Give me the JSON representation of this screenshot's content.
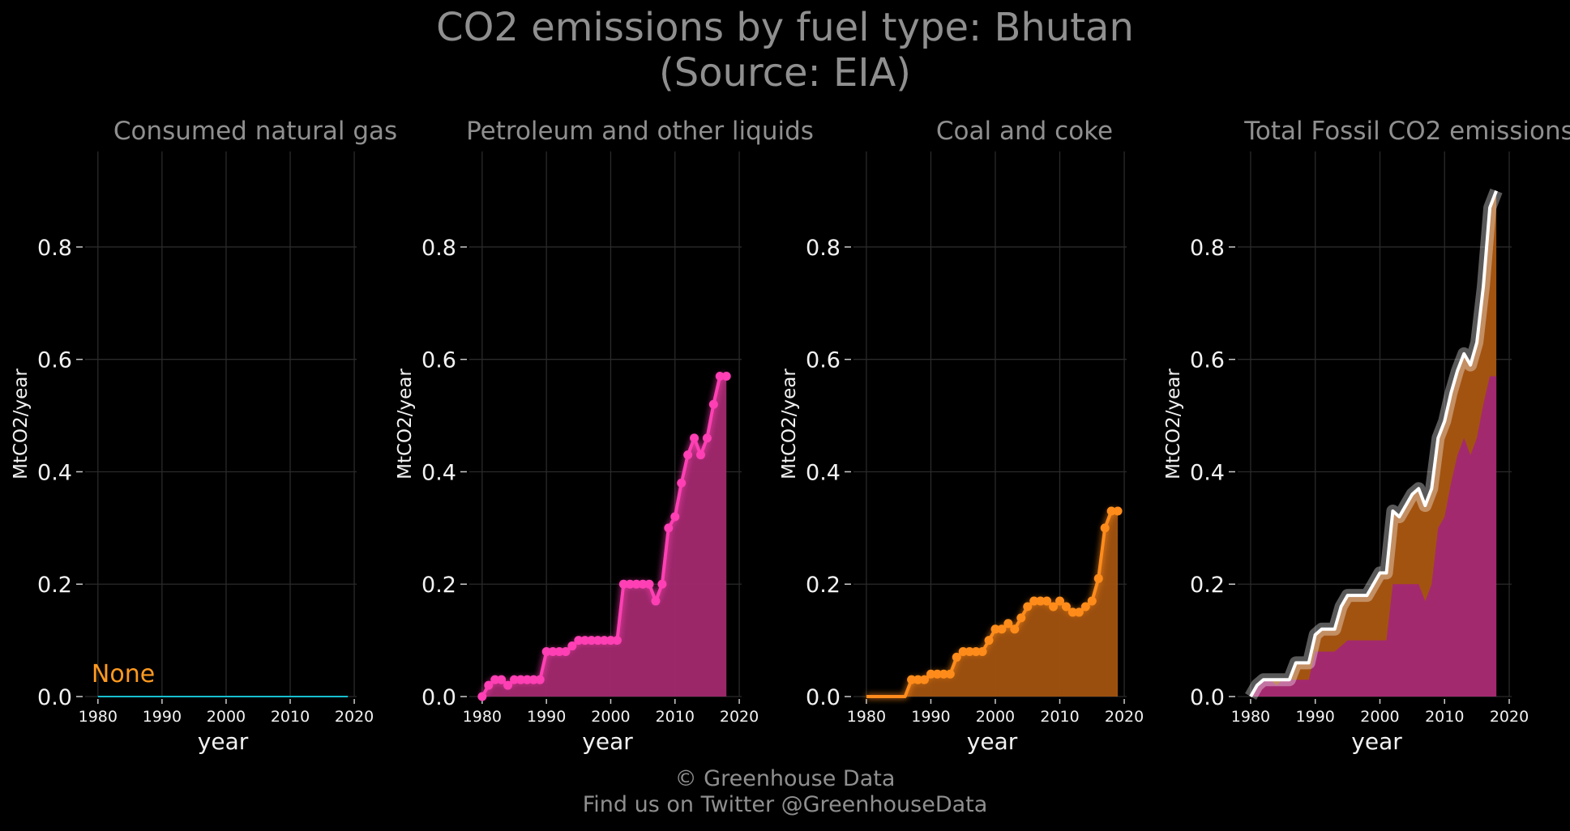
{
  "title": {
    "line1": "CO2 emissions by fuel type: Bhutan",
    "line2": "(Source: EIA)"
  },
  "footer": {
    "line1": "© Greenhouse Data",
    "line2": "Find us on Twitter @GreenhouseData"
  },
  "colors": {
    "background": "#000000",
    "text_muted": "#8f8f8f",
    "grid": "#2a2a2a",
    "natural_gas": "#17becf",
    "petroleum": "#ff3fb4",
    "petroleum_fill": "#a3296f",
    "coal": "#ff8c1a",
    "coal_fill": "#a35310",
    "total": "#ffffff",
    "none_label": "#ff9a1f"
  },
  "chart_data": [
    {
      "type": "line",
      "title": "Consumed natural gas",
      "xlabel": "year",
      "ylabel": "MtCO2/year",
      "xlim": [
        1978,
        2021
      ],
      "ylim": [
        0,
        0.97
      ],
      "xticks": [
        "1980",
        "1990",
        "2000",
        "2010",
        "2020"
      ],
      "yticks": [
        "0.0",
        "0.2",
        "0.4",
        "0.6",
        "0.8"
      ],
      "grid": true,
      "annotation": "None",
      "series": [
        {
          "x": [
            1980,
            2019
          ],
          "values": [
            0.0,
            0.0
          ]
        }
      ]
    },
    {
      "type": "area",
      "title": "Petroleum and other liquids",
      "xlabel": "year",
      "ylabel": "MtCO2/year",
      "xlim": [
        1978,
        2021
      ],
      "ylim": [
        0,
        0.97
      ],
      "xticks": [
        "1980",
        "1990",
        "2000",
        "2010",
        "2020"
      ],
      "yticks": [
        "0.0",
        "0.2",
        "0.4",
        "0.6",
        "0.8"
      ],
      "grid": true,
      "series": [
        {
          "x": [
            1980,
            1981,
            1982,
            1983,
            1984,
            1985,
            1986,
            1987,
            1988,
            1989,
            1990,
            1991,
            1992,
            1993,
            1994,
            1995,
            1996,
            1997,
            1998,
            1999,
            2000,
            2001,
            2002,
            2003,
            2004,
            2005,
            2006,
            2007,
            2008,
            2009,
            2010,
            2011,
            2012,
            2013,
            2014,
            2015,
            2016,
            2017,
            2018
          ],
          "values": [
            0.0,
            0.02,
            0.03,
            0.03,
            0.02,
            0.03,
            0.03,
            0.03,
            0.03,
            0.03,
            0.08,
            0.08,
            0.08,
            0.08,
            0.09,
            0.1,
            0.1,
            0.1,
            0.1,
            0.1,
            0.1,
            0.1,
            0.2,
            0.2,
            0.2,
            0.2,
            0.2,
            0.17,
            0.2,
            0.3,
            0.32,
            0.38,
            0.43,
            0.46,
            0.43,
            0.46,
            0.52,
            0.57,
            0.57
          ]
        }
      ]
    },
    {
      "type": "area",
      "title": "Coal and coke",
      "xlabel": "year",
      "ylabel": "MtCO2/year",
      "xlim": [
        1978,
        2021
      ],
      "ylim": [
        0,
        0.97
      ],
      "xticks": [
        "1980",
        "1990",
        "2000",
        "2010",
        "2020"
      ],
      "yticks": [
        "0.0",
        "0.2",
        "0.4",
        "0.6",
        "0.8"
      ],
      "grid": true,
      "series": [
        {
          "x": [
            1980,
            1981,
            1982,
            1983,
            1984,
            1985,
            1986,
            1987,
            1988,
            1989,
            1990,
            1991,
            1992,
            1993,
            1994,
            1995,
            1996,
            1997,
            1998,
            1999,
            2000,
            2001,
            2002,
            2003,
            2004,
            2005,
            2006,
            2007,
            2008,
            2009,
            2010,
            2011,
            2012,
            2013,
            2014,
            2015,
            2016,
            2017,
            2018,
            2019
          ],
          "values": [
            0.0,
            0.0,
            0.0,
            0.0,
            0.0,
            0.0,
            0.0,
            0.03,
            0.03,
            0.03,
            0.04,
            0.04,
            0.04,
            0.04,
            0.07,
            0.08,
            0.08,
            0.08,
            0.08,
            0.1,
            0.12,
            0.12,
            0.13,
            0.12,
            0.14,
            0.16,
            0.17,
            0.17,
            0.17,
            0.16,
            0.17,
            0.16,
            0.15,
            0.15,
            0.16,
            0.17,
            0.21,
            0.3,
            0.33,
            0.33
          ]
        }
      ]
    },
    {
      "type": "area",
      "title": "Total Fossil CO2 emissions",
      "xlabel": "year",
      "ylabel": "MtCO2/year",
      "xlim": [
        1978,
        2021
      ],
      "ylim": [
        0,
        0.97
      ],
      "xticks": [
        "1980",
        "1990",
        "2000",
        "2010",
        "2020"
      ],
      "yticks": [
        "0.0",
        "0.2",
        "0.4",
        "0.6",
        "0.8"
      ],
      "grid": true,
      "series": [
        {
          "x": [
            1980,
            1981,
            1982,
            1983,
            1984,
            1985,
            1986,
            1987,
            1988,
            1989,
            1990,
            1991,
            1992,
            1993,
            1994,
            1995,
            1996,
            1997,
            1998,
            1999,
            2000,
            2001,
            2002,
            2003,
            2004,
            2005,
            2006,
            2007,
            2008,
            2009,
            2010,
            2011,
            2012,
            2013,
            2014,
            2015,
            2016,
            2017,
            2018
          ],
          "values": [
            0.0,
            0.02,
            0.03,
            0.03,
            0.03,
            0.03,
            0.03,
            0.06,
            0.06,
            0.06,
            0.11,
            0.12,
            0.12,
            0.12,
            0.16,
            0.18,
            0.18,
            0.18,
            0.18,
            0.2,
            0.22,
            0.22,
            0.33,
            0.32,
            0.34,
            0.36,
            0.37,
            0.34,
            0.37,
            0.46,
            0.49,
            0.54,
            0.58,
            0.61,
            0.59,
            0.63,
            0.73,
            0.87,
            0.9
          ]
        },
        {
          "x": [
            1980,
            1981,
            1982,
            1983,
            1984,
            1985,
            1986,
            1987,
            1988,
            1989,
            1990,
            1991,
            1992,
            1993,
            1994,
            1995,
            1996,
            1997,
            1998,
            1999,
            2000,
            2001,
            2002,
            2003,
            2004,
            2005,
            2006,
            2007,
            2008,
            2009,
            2010,
            2011,
            2012,
            2013,
            2014,
            2015,
            2016,
            2017,
            2018
          ],
          "values": [
            0.0,
            0.02,
            0.03,
            0.03,
            0.02,
            0.03,
            0.03,
            0.03,
            0.03,
            0.03,
            0.08,
            0.08,
            0.08,
            0.08,
            0.09,
            0.1,
            0.1,
            0.1,
            0.1,
            0.1,
            0.1,
            0.1,
            0.2,
            0.2,
            0.2,
            0.2,
            0.2,
            0.17,
            0.2,
            0.3,
            0.32,
            0.38,
            0.43,
            0.46,
            0.43,
            0.46,
            0.52,
            0.57,
            0.57
          ]
        }
      ]
    }
  ]
}
